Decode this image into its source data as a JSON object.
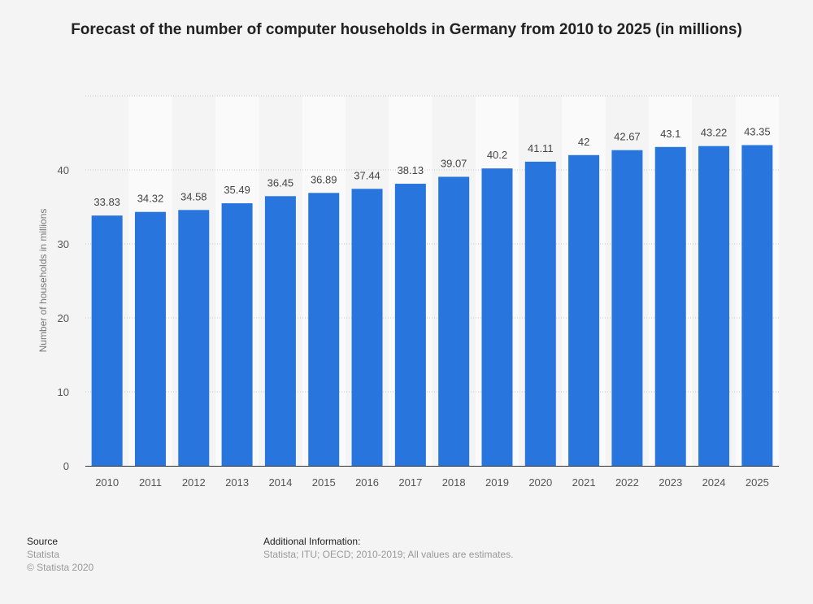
{
  "chart_data": {
    "type": "bar",
    "title": "Forecast of the number of computer households in Germany from 2010 to 2025 (in millions)",
    "xlabel": "",
    "ylabel": "Number of households in millions",
    "ylim": [
      0,
      50
    ],
    "yticks": [
      0,
      10,
      20,
      30,
      40
    ],
    "grid": true,
    "categories": [
      "2010",
      "2011",
      "2012",
      "2013",
      "2014",
      "2015",
      "2016",
      "2017",
      "2018",
      "2019",
      "2020",
      "2021",
      "2022",
      "2023",
      "2024",
      "2025"
    ],
    "values": [
      33.83,
      34.32,
      34.58,
      35.49,
      36.45,
      36.89,
      37.44,
      38.13,
      39.07,
      40.2,
      41.11,
      42,
      42.67,
      43.1,
      43.22,
      43.35
    ],
    "value_labels": [
      "33.83",
      "34.32",
      "34.58",
      "35.49",
      "36.45",
      "36.89",
      "37.44",
      "38.13",
      "39.07",
      "40.2",
      "41.11",
      "42",
      "42.67",
      "43.1",
      "43.22",
      "43.35"
    ],
    "colors": {
      "bar": "#2876dd",
      "background": "#f4f4f4",
      "band": "#fafafa"
    }
  },
  "footer": {
    "source_heading": "Source",
    "source_name": "Statista",
    "copyright": "© Statista 2020",
    "additional_heading": "Additional Information:",
    "additional_text": "Statista; ITU; OECD; 2010-2019; All values are estimates."
  }
}
